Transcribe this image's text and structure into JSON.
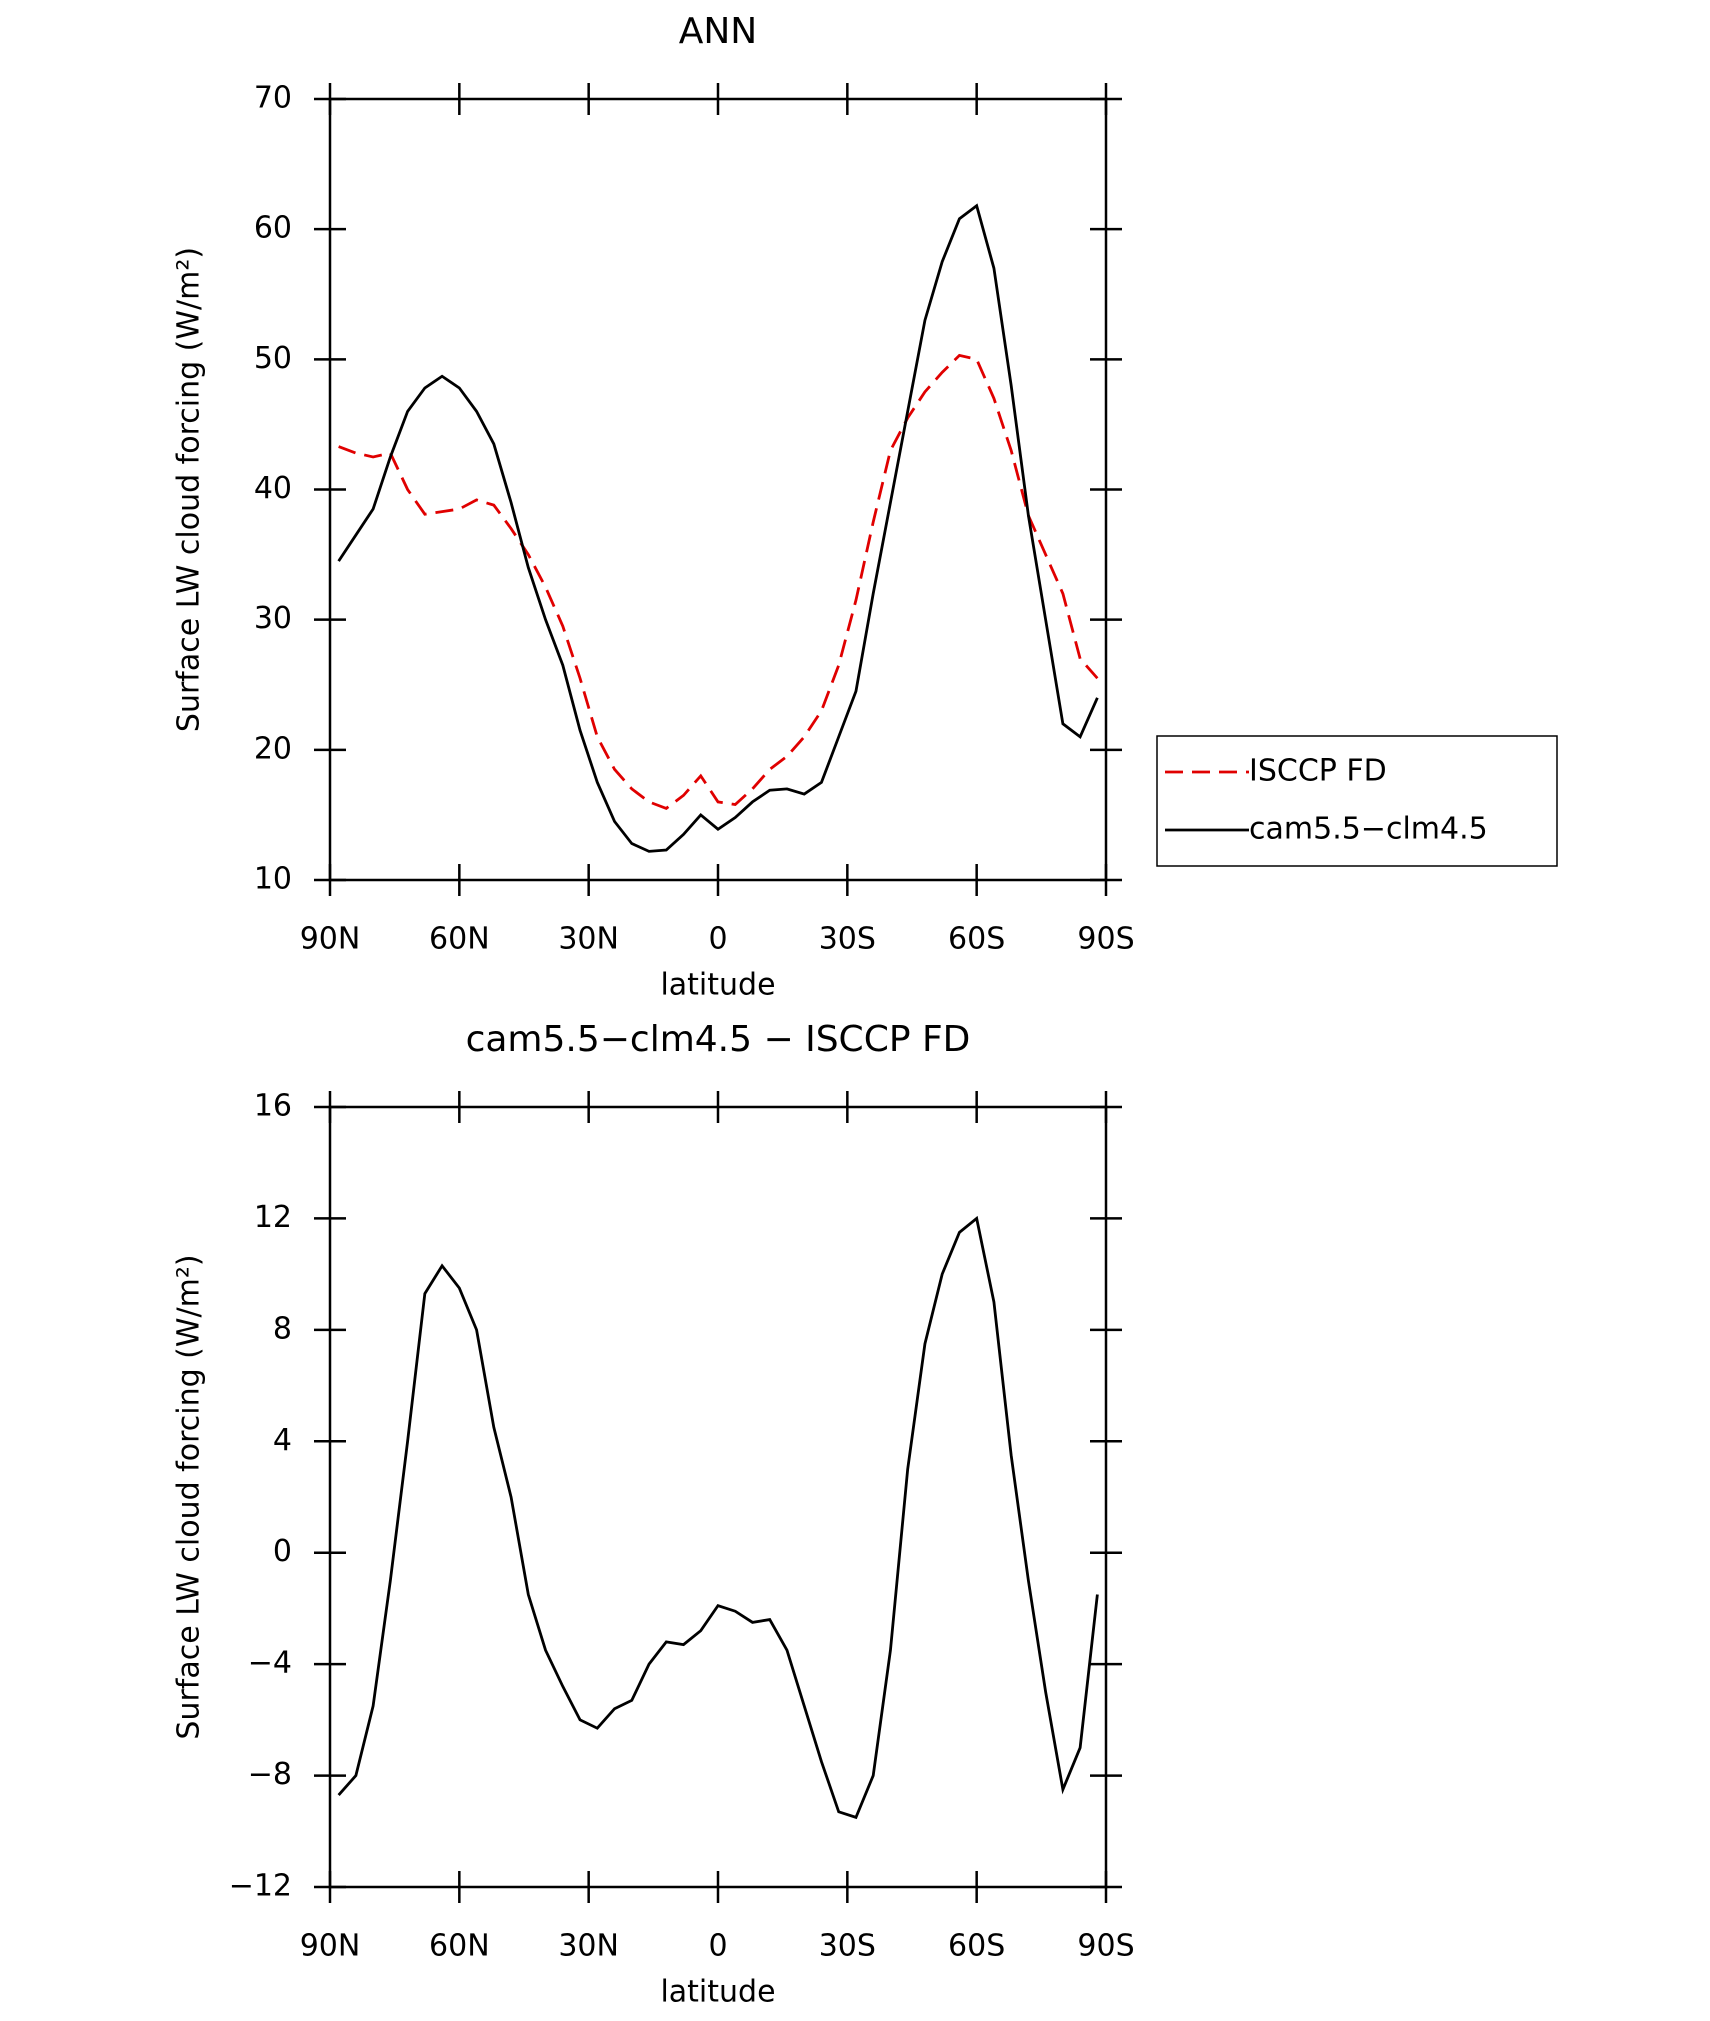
{
  "chart_data": [
    {
      "type": "line",
      "title": "ANN",
      "xlabel": "latitude",
      "ylabel": "Surface LW cloud forcing (W/m²)",
      "x": [
        88,
        84,
        80,
        76,
        72,
        68,
        64,
        60,
        56,
        52,
        48,
        44,
        40,
        36,
        32,
        28,
        24,
        20,
        16,
        12,
        8,
        4,
        0,
        -4,
        -8,
        -12,
        -16,
        -20,
        -24,
        -28,
        -32,
        -36,
        -40,
        -44,
        -48,
        -52,
        -56,
        -60,
        -64,
        -68,
        -72,
        -76,
        -80,
        -84,
        -88
      ],
      "series": [
        {
          "name": "ISCCP FD",
          "color": "#e00000",
          "dash": true,
          "values": [
            43.3,
            42.8,
            42.5,
            42.8,
            40,
            38.1,
            38.3,
            38.5,
            39.2,
            38.8,
            37,
            35,
            32.5,
            29.5,
            25.5,
            21,
            18.5,
            17,
            16,
            15.5,
            16.5,
            18,
            16,
            15.8,
            17,
            18.5,
            19.5,
            21,
            23,
            26.5,
            31.5,
            37.5,
            43,
            45.5,
            47.5,
            49,
            50.3,
            50,
            47,
            43,
            38,
            35,
            32,
            27,
            25.5
          ]
        },
        {
          "name": "cam5.5−clm4.5",
          "color": "#000000",
          "dash": false,
          "values": [
            34.5,
            36.5,
            38.5,
            42.5,
            46,
            47.8,
            48.7,
            47.8,
            46,
            43.5,
            39,
            34,
            30,
            26.5,
            21.5,
            17.5,
            14.5,
            12.8,
            12.2,
            12.3,
            13.5,
            15,
            13.9,
            14.8,
            16,
            16.9,
            17,
            16.6,
            17.5,
            21,
            24.5,
            32,
            39,
            46,
            53,
            57.5,
            60.8,
            61.8,
            57,
            48,
            38,
            30,
            22,
            21,
            24
          ]
        }
      ],
      "xlim": [
        90,
        -90
      ],
      "xticks": [
        {
          "value": 90,
          "label": "90N"
        },
        {
          "value": 60,
          "label": "60N"
        },
        {
          "value": 30,
          "label": "30N"
        },
        0,
        {
          "value": -30,
          "label": "30S"
        },
        {
          "value": -60,
          "label": "60S"
        },
        {
          "value": -90,
          "label": "90S"
        }
      ],
      "ylim": [
        10,
        70
      ],
      "yticks": [
        10,
        20,
        30,
        40,
        50,
        60,
        70
      ],
      "legend": "right"
    },
    {
      "type": "line",
      "title": "cam5.5−clm4.5 − ISCCP FD",
      "xlabel": "latitude",
      "ylabel": "Surface LW cloud forcing (W/m²)",
      "x": [
        88,
        84,
        80,
        76,
        72,
        68,
        64,
        60,
        56,
        52,
        48,
        44,
        40,
        36,
        32,
        28,
        24,
        20,
        16,
        12,
        8,
        4,
        0,
        -4,
        -8,
        -12,
        -16,
        -20,
        -24,
        -28,
        -32,
        -36,
        -40,
        -44,
        -48,
        -52,
        -56,
        -60,
        -64,
        -68,
        -72,
        -76,
        -80,
        -84,
        -88
      ],
      "series": [
        {
          "color": "#000000",
          "dash": false,
          "values": [
            -8.7,
            -8,
            -5.5,
            -1,
            4,
            9.3,
            10.3,
            9.5,
            8,
            4.5,
            2,
            -1.5,
            -3.5,
            -4.8,
            -6,
            -6.3,
            -5.6,
            -5.3,
            -4,
            -3.2,
            -3.3,
            -2.8,
            -1.9,
            -2.1,
            -2.5,
            -2.4,
            -3.5,
            -5.5,
            -7.5,
            -9.3,
            -9.5,
            -8,
            -3.5,
            3,
            7.5,
            10,
            11.5,
            12,
            9,
            3.5,
            -1,
            -5,
            -8.5,
            -7,
            -1.5
          ]
        }
      ],
      "xlim": [
        90,
        -90
      ],
      "xticks": [
        {
          "value": 90,
          "label": "90N"
        },
        {
          "value": 60,
          "label": "60N"
        },
        {
          "value": 30,
          "label": "30N"
        },
        0,
        {
          "value": -30,
          "label": "30S"
        },
        {
          "value": -60,
          "label": "60S"
        },
        {
          "value": -90,
          "label": "90S"
        }
      ],
      "ylim": [
        -12,
        16
      ],
      "yticks": [
        {
          "value": -12,
          "label": "−12"
        },
        {
          "value": -8,
          "label": "−8"
        },
        {
          "value": -4,
          "label": "−4"
        },
        0,
        4,
        8,
        12,
        16
      ]
    }
  ]
}
